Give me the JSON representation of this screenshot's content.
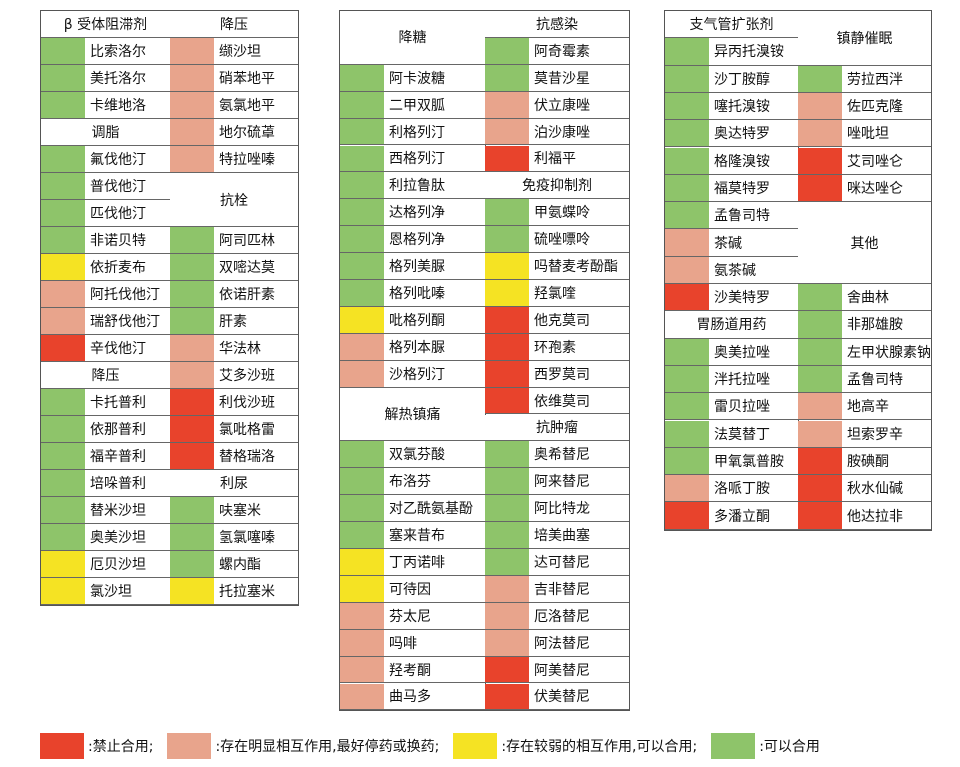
{
  "colors": {
    "r": "#e8432c",
    "p": "#e8a48c",
    "y": "#f5e323",
    "g": "#8ec46a"
  },
  "tables": [
    {
      "name": "table-1",
      "left": 40,
      "width": 259,
      "rows": 22,
      "rowh": 27,
      "cols": [
        [
          {
            "h": "β 受体阻滞剂"
          },
          {
            "t": "比索洛尔",
            "c": "g"
          },
          {
            "t": "美托洛尔",
            "c": "g"
          },
          {
            "t": "卡维地洛",
            "c": "g"
          },
          {
            "h": "调脂"
          },
          {
            "t": "氟伐他汀",
            "c": "g"
          },
          {
            "t": "普伐他汀",
            "c": "g"
          },
          {
            "t": "匹伐他汀",
            "c": "g"
          },
          {
            "t": "非诺贝特",
            "c": "g"
          },
          {
            "t": "依折麦布",
            "c": "y"
          },
          {
            "t": "阿托伐他汀",
            "c": "p"
          },
          {
            "t": "瑞舒伐他汀",
            "c": "p"
          },
          {
            "t": "辛伐他汀",
            "c": "r"
          },
          {
            "h": "降压"
          },
          {
            "t": "卡托普利",
            "c": "g"
          },
          {
            "t": "依那普利",
            "c": "g"
          },
          {
            "t": "福辛普利",
            "c": "g"
          },
          {
            "t": "培哚普利",
            "c": "g"
          },
          {
            "t": "替米沙坦",
            "c": "g"
          },
          {
            "t": "奥美沙坦",
            "c": "g"
          },
          {
            "t": "厄贝沙坦",
            "c": "y"
          },
          {
            "t": "氯沙坦",
            "c": "y"
          }
        ],
        [
          {
            "h": "降压"
          },
          {
            "t": "缬沙坦",
            "c": "p"
          },
          {
            "t": "硝苯地平",
            "c": "p"
          },
          {
            "t": "氨氯地平",
            "c": "p"
          },
          {
            "t": "地尔硫䓬",
            "c": "p"
          },
          {
            "t": "特拉唑嗪",
            "c": "p"
          },
          {
            "h": "抗栓",
            "s": 2
          },
          {
            "t": "阿司匹林",
            "c": "g"
          },
          {
            "t": "双嘧达莫",
            "c": "g"
          },
          {
            "t": "依诺肝素",
            "c": "g"
          },
          {
            "t": "肝素",
            "c": "g"
          },
          {
            "t": "华法林",
            "c": "p"
          },
          {
            "t": "艾多沙班",
            "c": "p"
          },
          {
            "t": "利伐沙班",
            "c": "r"
          },
          {
            "t": "氯吡格雷",
            "c": "r"
          },
          {
            "t": "替格瑞洛",
            "c": "r"
          },
          {
            "h": "利尿"
          },
          {
            "t": "呋塞米",
            "c": "g"
          },
          {
            "t": "氢氯噻嗪",
            "c": "g"
          },
          {
            "t": "螺内酯",
            "c": "g"
          },
          {
            "t": "托拉塞米",
            "c": "y"
          }
        ]
      ]
    },
    {
      "name": "table-2",
      "left": 339,
      "width": 291,
      "rows": 26,
      "rowh": 26.9,
      "cols": [
        [
          {
            "h": "降糖",
            "s": 2
          },
          {
            "t": "阿卡波糖",
            "c": "g"
          },
          {
            "t": "二甲双胍",
            "c": "g"
          },
          {
            "t": "利格列汀",
            "c": "g"
          },
          {
            "t": "西格列汀",
            "c": "g"
          },
          {
            "t": "利拉鲁肽",
            "c": "g"
          },
          {
            "t": "达格列净",
            "c": "g"
          },
          {
            "t": "恩格列净",
            "c": "g"
          },
          {
            "t": "格列美脲",
            "c": "g"
          },
          {
            "t": "格列吡嗪",
            "c": "g"
          },
          {
            "t": "吡格列酮",
            "c": "y"
          },
          {
            "t": "格列本脲",
            "c": "p"
          },
          {
            "t": "沙格列汀",
            "c": "p"
          },
          {
            "h": "解热镇痛",
            "s": 2
          },
          {
            "t": "双氯芬酸",
            "c": "g"
          },
          {
            "t": "布洛芬",
            "c": "g"
          },
          {
            "t": "对乙酰氨基酚",
            "c": "g"
          },
          {
            "t": "塞来昔布",
            "c": "g"
          },
          {
            "t": "丁丙诺啡",
            "c": "y"
          },
          {
            "t": "可待因",
            "c": "y"
          },
          {
            "t": "芬太尼",
            "c": "p"
          },
          {
            "t": "吗啡",
            "c": "p"
          },
          {
            "t": "羟考酮",
            "c": "p"
          },
          {
            "t": "曲马多",
            "c": "p"
          }
        ],
        [
          {
            "h": "抗感染"
          },
          {
            "t": "阿奇霉素",
            "c": "g"
          },
          {
            "t": "莫昔沙星",
            "c": "g"
          },
          {
            "t": "伏立康唑",
            "c": "p"
          },
          {
            "t": "泊沙康唑",
            "c": "p"
          },
          {
            "t": "利福平",
            "c": "r"
          },
          {
            "h": "免疫抑制剂"
          },
          {
            "t": "甲氨蝶呤",
            "c": "g"
          },
          {
            "t": "硫唑嘌呤",
            "c": "g"
          },
          {
            "t": "吗替麦考酚酯",
            "c": "y"
          },
          {
            "t": "羟氯喹",
            "c": "y"
          },
          {
            "t": "他克莫司",
            "c": "r"
          },
          {
            "t": "环孢素",
            "c": "r"
          },
          {
            "t": "西罗莫司",
            "c": "r"
          },
          {
            "t": "依维莫司",
            "c": "r"
          },
          {
            "h": "抗肿瘤"
          },
          {
            "t": "奥希替尼",
            "c": "g"
          },
          {
            "t": "阿来替尼",
            "c": "g"
          },
          {
            "t": "阿比特龙",
            "c": "g"
          },
          {
            "t": "培美曲塞",
            "c": "g"
          },
          {
            "t": "达可替尼",
            "c": "g"
          },
          {
            "t": "吉非替尼",
            "c": "p"
          },
          {
            "t": "厄洛替尼",
            "c": "p"
          },
          {
            "t": "阿法替尼",
            "c": "p"
          },
          {
            "t": "阿美替尼",
            "c": "r"
          },
          {
            "t": "伏美替尼",
            "c": "r"
          }
        ]
      ]
    },
    {
      "name": "table-3",
      "left": 664,
      "width": 268,
      "rows": 19,
      "rowh": 27.3,
      "cols": [
        [
          {
            "h": "支气管扩张剂"
          },
          {
            "t": "异丙托溴铵",
            "c": "g"
          },
          {
            "t": "沙丁胺醇",
            "c": "g"
          },
          {
            "t": "噻托溴铵",
            "c": "g"
          },
          {
            "t": "奥达特罗",
            "c": "g"
          },
          {
            "t": "格隆溴铵",
            "c": "g"
          },
          {
            "t": "福莫特罗",
            "c": "g"
          },
          {
            "t": "孟鲁司特",
            "c": "g"
          },
          {
            "t": "茶碱",
            "c": "p"
          },
          {
            "t": "氨茶碱",
            "c": "p"
          },
          {
            "t": "沙美特罗",
            "c": "r"
          },
          {
            "h": "胃肠道用药"
          },
          {
            "t": "奥美拉唑",
            "c": "g"
          },
          {
            "t": "泮托拉唑",
            "c": "g"
          },
          {
            "t": "雷贝拉唑",
            "c": "g"
          },
          {
            "t": "法莫替丁",
            "c": "g"
          },
          {
            "t": "甲氧氯普胺",
            "c": "g"
          },
          {
            "t": "洛哌丁胺",
            "c": "p"
          },
          {
            "t": "多潘立酮",
            "c": "r"
          }
        ],
        [
          {
            "h": "镇静催眠",
            "s": 2
          },
          {
            "t": "劳拉西泮",
            "c": "g"
          },
          {
            "t": "佐匹克隆",
            "c": "p"
          },
          {
            "t": "唑吡坦",
            "c": "p"
          },
          {
            "t": "艾司唑仑",
            "c": "r"
          },
          {
            "t": "咪达唑仑",
            "c": "r"
          },
          {
            "h": "其他",
            "s": 3
          },
          {
            "t": "舍曲林",
            "c": "g"
          },
          {
            "t": "非那雄胺",
            "c": "g"
          },
          {
            "t": "左甲状腺素钠",
            "c": "g"
          },
          {
            "t": "孟鲁司特",
            "c": "g"
          },
          {
            "t": "地高辛",
            "c": "p"
          },
          {
            "t": "坦索罗辛",
            "c": "p"
          },
          {
            "t": "胺碘酮",
            "c": "r"
          },
          {
            "t": "秋水仙碱",
            "c": "r"
          },
          {
            "t": "他达拉非",
            "c": "r"
          }
        ]
      ]
    }
  ],
  "legend": [
    {
      "c": "r",
      "t": ":禁止合用;"
    },
    {
      "c": "p",
      "t": ":存在明显相互作用,最好停药或换药;"
    },
    {
      "c": "y",
      "t": ":存在较弱的相互作用,可以合用;"
    },
    {
      "c": "g",
      "t": ":可以合用"
    }
  ]
}
